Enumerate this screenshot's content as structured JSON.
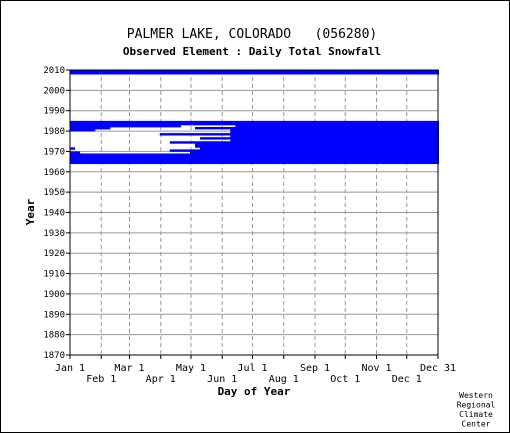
{
  "chart_data": {
    "type": "heatmap",
    "title": "PALMER LAKE, COLORADO   (056280)",
    "subtitle": "Observed Element : Daily Total Snowfall",
    "xlabel": "Day of Year",
    "ylabel": "Year",
    "ylim": [
      1870,
      2010
    ],
    "y_ticks": [
      1870,
      1880,
      1890,
      1900,
      1910,
      1920,
      1930,
      1940,
      1950,
      1960,
      1970,
      1980,
      1990,
      2000,
      2010
    ],
    "x_ticks_top": [
      "Jan 1",
      "Mar 1",
      "May 1",
      "Jul 1",
      "Sep 1",
      "Nov 1",
      "Dec 31"
    ],
    "x_ticks_bottom": [
      "Feb 1",
      "Apr 1",
      "Jun 1",
      "Aug 1",
      "Oct 1",
      "Dec 1"
    ],
    "grid": true,
    "credit": [
      "Western",
      "Regional",
      "Climate",
      "Center"
    ],
    "data_color": "#0000ff",
    "observed_spans": [
      {
        "year": 2009,
        "start_day": 1,
        "end_day": 366
      },
      {
        "year": 2008,
        "start_day": 1,
        "end_day": 366
      },
      {
        "year": 1984,
        "start_day": 1,
        "end_day": 366
      },
      {
        "year": 1983,
        "start_day": 1,
        "end_day": 366
      },
      {
        "year": 1982,
        "start_day": 1,
        "end_day": 110
      },
      {
        "year": 1982,
        "start_day": 165,
        "end_day": 366
      },
      {
        "year": 1981,
        "start_day": 1,
        "end_day": 40
      },
      {
        "year": 1981,
        "start_day": 125,
        "end_day": 366
      },
      {
        "year": 1980,
        "start_day": 1,
        "end_day": 25
      },
      {
        "year": 1980,
        "start_day": 160,
        "end_day": 366
      },
      {
        "year": 1979,
        "start_day": 160,
        "end_day": 366
      },
      {
        "year": 1978,
        "start_day": 90,
        "end_day": 366
      },
      {
        "year": 1977,
        "start_day": 160,
        "end_day": 366
      },
      {
        "year": 1976,
        "start_day": 130,
        "end_day": 366
      },
      {
        "year": 1975,
        "start_day": 160,
        "end_day": 366
      },
      {
        "year": 1974,
        "start_day": 100,
        "end_day": 366
      },
      {
        "year": 1973,
        "start_day": 125,
        "end_day": 366
      },
      {
        "year": 1972,
        "start_day": 125,
        "end_day": 366
      },
      {
        "year": 1971,
        "start_day": 1,
        "end_day": 5
      },
      {
        "year": 1971,
        "start_day": 130,
        "end_day": 366
      },
      {
        "year": 1970,
        "start_day": 100,
        "end_day": 366
      },
      {
        "year": 1969,
        "start_day": 1,
        "end_day": 10
      },
      {
        "year": 1969,
        "start_day": 120,
        "end_day": 366
      },
      {
        "year": 1968,
        "start_day": 1,
        "end_day": 366
      },
      {
        "year": 1967,
        "start_day": 1,
        "end_day": 366
      },
      {
        "year": 1966,
        "start_day": 1,
        "end_day": 366
      },
      {
        "year": 1965,
        "start_day": 1,
        "end_day": 366
      },
      {
        "year": 1964,
        "start_day": 1,
        "end_day": 366
      }
    ]
  }
}
